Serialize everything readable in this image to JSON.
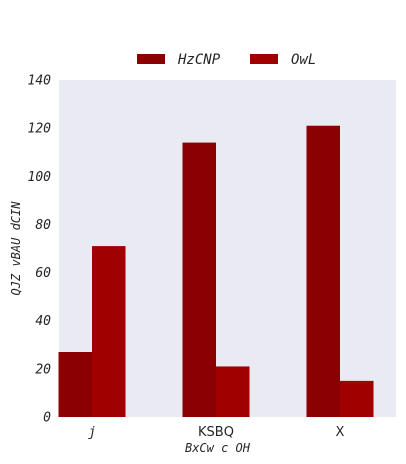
{
  "chart_data": {
    "type": "bar",
    "title": "",
    "xlabel": "BxCw   c OH",
    "ylabel": "QJZ vBAU dCIN",
    "categories": [
      "j",
      "KSBQ",
      "X"
    ],
    "series": [
      {
        "name": "HzCNP",
        "values": [
          27,
          114,
          121
        ],
        "color": "#8b0000"
      },
      {
        "name": "OwL",
        "values": [
          71,
          21,
          15
        ],
        "color": "#a00000"
      }
    ],
    "ylim": [
      0,
      140
    ],
    "yticks": [
      0,
      20,
      40,
      60,
      80,
      100,
      120,
      140
    ],
    "grid": false,
    "legend_position": "top-center",
    "background": "#eaeaf2"
  }
}
